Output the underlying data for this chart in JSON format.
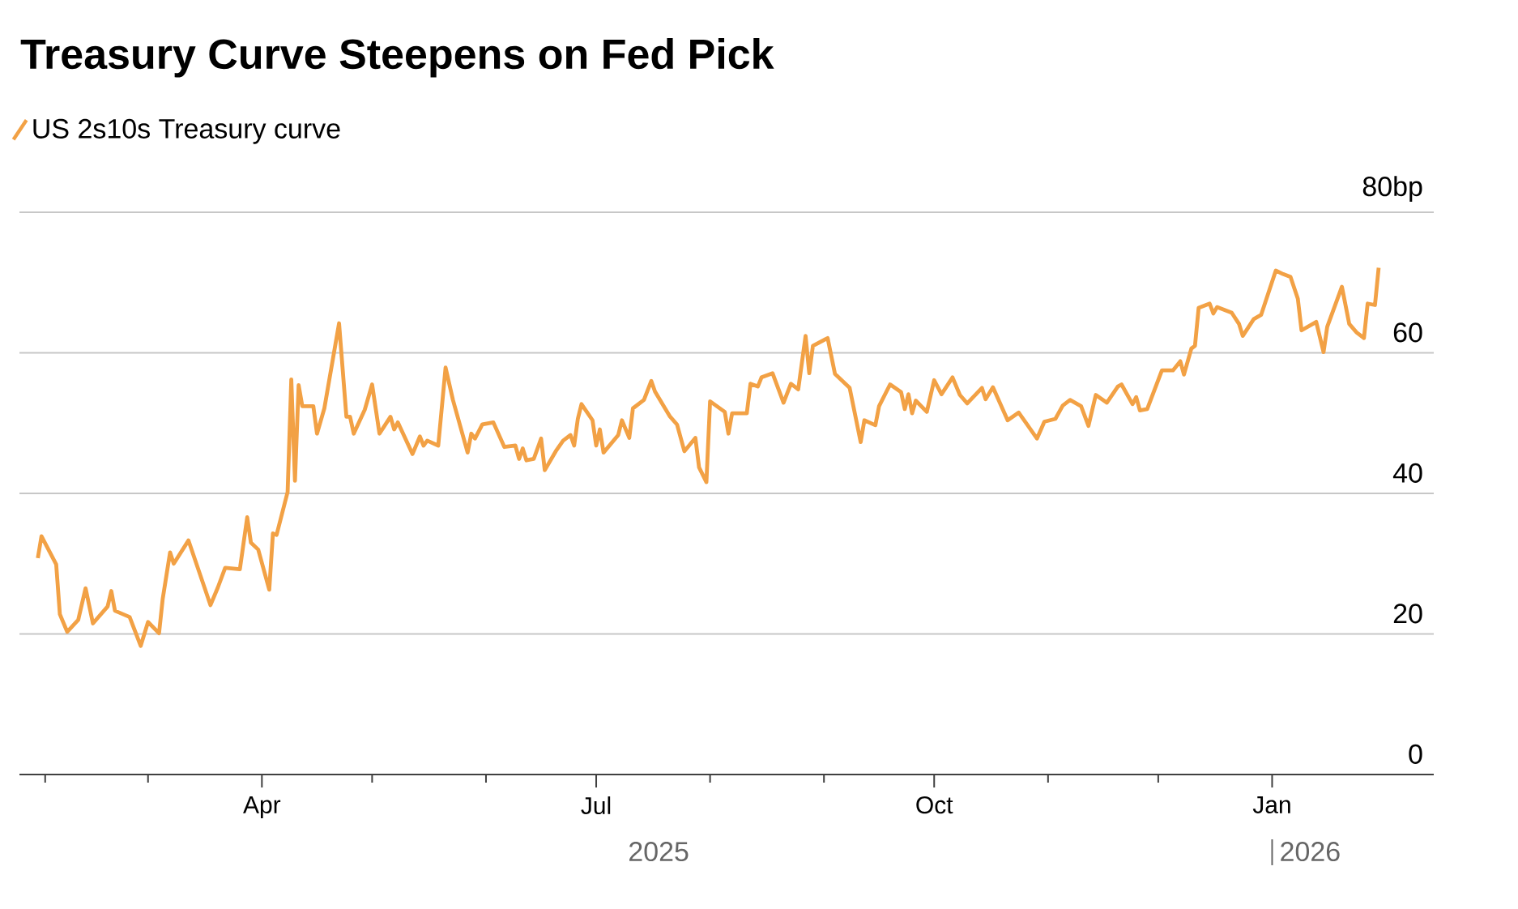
{
  "chart_data": {
    "type": "line",
    "title": "Treasury Curve Steepens on Fed Pick",
    "legend": "top left",
    "grid": "y",
    "line_style": "solid",
    "xlim": [
      "2025-01-25",
      "2026-02-14"
    ],
    "xticks": [
      {
        "value": "2025-02-01",
        "label": null
      },
      {
        "value": "2025-03-01",
        "label": null
      },
      {
        "value": "2025-04-01",
        "label": "Apr"
      },
      {
        "value": "2025-05-01",
        "label": null
      },
      {
        "value": "2025-06-01",
        "label": null
      },
      {
        "value": "2025-07-01",
        "label": "Jul"
      },
      {
        "value": "2025-08-01",
        "label": null
      },
      {
        "value": "2025-09-01",
        "label": null
      },
      {
        "value": "2025-10-01",
        "label": "Oct"
      },
      {
        "value": "2025-11-01",
        "label": null
      },
      {
        "value": "2025-12-01",
        "label": null
      },
      {
        "value": "2026-01-01",
        "label": "Jan"
      }
    ],
    "ylim": [
      0,
      80
    ],
    "yticks": [
      0,
      20,
      40,
      60,
      {
        "value": 80,
        "label": "80bp"
      }
    ],
    "annotations": [
      "2025",
      "2026"
    ],
    "series": [
      {
        "name": "US 2s10s Treasury curve",
        "color": "#f2a145",
        "x": [
          "2025-01-30",
          "2025-01-31",
          "2025-02-04",
          "2025-02-05",
          "2025-02-07",
          "2025-02-10",
          "2025-02-12",
          "2025-02-14",
          "2025-02-18",
          "2025-02-19",
          "2025-02-20",
          "2025-02-24",
          "2025-02-27",
          "2025-03-01",
          "2025-03-04",
          "2025-03-05",
          "2025-03-07",
          "2025-03-08",
          "2025-03-12",
          "2025-03-18",
          "2025-03-20",
          "2025-03-22",
          "2025-03-26",
          "2025-03-28",
          "2025-03-29",
          "2025-03-31",
          "2025-04-03",
          "2025-04-04",
          "2025-04-05",
          "2025-04-08",
          "2025-04-09",
          "2025-04-10",
          "2025-04-11",
          "2025-04-12",
          "2025-04-15",
          "2025-04-16",
          "2025-04-18",
          "2025-04-22",
          "2025-04-24",
          "2025-04-25",
          "2025-04-26",
          "2025-04-29",
          "2025-05-01",
          "2025-05-03",
          "2025-05-06",
          "2025-05-07",
          "2025-05-08",
          "2025-05-12",
          "2025-05-14",
          "2025-05-15",
          "2025-05-16",
          "2025-05-19",
          "2025-05-21",
          "2025-05-23",
          "2025-05-27",
          "2025-05-28",
          "2025-05-29",
          "2025-05-31",
          "2025-06-03",
          "2025-06-06",
          "2025-06-09",
          "2025-06-10",
          "2025-06-11",
          "2025-06-12",
          "2025-06-14",
          "2025-06-16",
          "2025-06-17",
          "2025-06-20",
          "2025-06-22",
          "2025-06-24",
          "2025-06-25",
          "2025-06-26",
          "2025-06-27",
          "2025-06-30",
          "2025-07-01",
          "2025-07-02",
          "2025-07-03",
          "2025-07-07",
          "2025-07-08",
          "2025-07-10",
          "2025-07-11",
          "2025-07-14",
          "2025-07-16",
          "2025-07-17",
          "2025-07-21",
          "2025-07-23",
          "2025-07-25",
          "2025-07-28",
          "2025-07-29",
          "2025-07-31",
          "2025-08-01",
          "2025-08-05",
          "2025-08-06",
          "2025-08-07",
          "2025-08-11",
          "2025-08-12",
          "2025-08-14",
          "2025-08-15",
          "2025-08-18",
          "2025-08-21",
          "2025-08-23",
          "2025-08-25",
          "2025-08-27",
          "2025-08-28",
          "2025-08-29",
          "2025-09-02",
          "2025-09-04",
          "2025-09-08",
          "2025-09-11",
          "2025-09-12",
          "2025-09-15",
          "2025-09-16",
          "2025-09-19",
          "2025-09-22",
          "2025-09-23",
          "2025-09-24",
          "2025-09-25",
          "2025-09-26",
          "2025-09-29",
          "2025-10-01",
          "2025-10-03",
          "2025-10-06",
          "2025-10-08",
          "2025-10-10",
          "2025-10-14",
          "2025-10-15",
          "2025-10-17",
          "2025-10-21",
          "2025-10-24",
          "2025-10-29",
          "2025-10-31",
          "2025-11-03",
          "2025-11-05",
          "2025-11-07",
          "2025-11-10",
          "2025-11-12",
          "2025-11-14",
          "2025-11-17",
          "2025-11-20",
          "2025-11-21",
          "2025-11-24",
          "2025-11-25",
          "2025-11-26",
          "2025-11-28",
          "2025-12-02",
          "2025-12-05",
          "2025-12-07",
          "2025-12-08",
          "2025-12-10",
          "2025-12-11",
          "2025-12-12",
          "2025-12-15",
          "2025-12-16",
          "2025-12-17",
          "2025-12-21",
          "2025-12-23",
          "2025-12-24",
          "2025-12-27",
          "2025-12-29",
          "2026-01-02",
          "2026-01-04",
          "2026-01-06",
          "2026-01-08",
          "2026-01-09",
          "2026-01-13",
          "2026-01-15",
          "2026-01-16",
          "2026-01-20",
          "2026-01-22",
          "2026-01-24",
          "2026-01-26",
          "2026-01-27",
          "2026-01-29",
          "2026-01-30"
        ],
        "values": [
          30.8,
          33.9,
          29.9,
          22.8,
          20.3,
          22.0,
          26.5,
          21.5,
          23.9,
          26.1,
          23.3,
          22.4,
          18.3,
          21.7,
          20.1,
          25.0,
          31.6,
          30.0,
          33.3,
          24.1,
          26.6,
          29.4,
          29.2,
          36.6,
          33.0,
          32.0,
          26.3,
          34.3,
          34.1,
          40.2,
          56.2,
          41.8,
          55.4,
          52.4,
          52.4,
          48.5,
          52.1,
          64.2,
          50.9,
          50.9,
          48.5,
          51.9,
          55.5,
          48.5,
          50.9,
          49.1,
          50.1,
          45.6,
          48.1,
          46.8,
          47.5,
          46.8,
          57.9,
          53.3,
          45.8,
          48.5,
          47.8,
          49.8,
          50.1,
          46.6,
          46.8,
          44.9,
          46.4,
          44.7,
          44.9,
          47.8,
          43.3,
          46.0,
          47.5,
          48.3,
          46.8,
          50.6,
          52.7,
          50.4,
          46.8,
          49.1,
          45.8,
          48.3,
          50.4,
          47.9,
          52.1,
          53.3,
          56.0,
          54.5,
          51.0,
          49.8,
          46.0,
          47.9,
          43.7,
          41.6,
          53.1,
          51.6,
          48.5,
          51.4,
          51.4,
          55.6,
          55.2,
          56.5,
          57.1,
          52.9,
          55.6,
          54.8,
          62.4,
          57.1,
          61.0,
          62.1,
          57.0,
          55.0,
          47.3,
          50.4,
          49.7,
          52.4,
          55.5,
          54.4,
          52.0,
          54.1,
          51.4,
          53.2,
          51.6,
          56.1,
          54.1,
          56.5,
          54.0,
          52.8,
          55.0,
          53.4,
          55.1,
          50.4,
          51.5,
          47.8,
          50.2,
          50.6,
          52.5,
          53.3,
          52.4,
          49.6,
          54.0,
          52.9,
          55.2,
          55.5,
          52.7,
          53.7,
          51.8,
          52.0,
          57.5,
          57.5,
          58.8,
          56.9,
          60.6,
          61.0,
          66.4,
          67.0,
          65.6,
          66.5,
          65.7,
          64.1,
          62.4,
          64.8,
          65.4,
          71.7,
          71.2,
          70.8,
          67.7,
          63.2,
          64.4,
          60.1,
          63.7,
          69.4,
          64.1,
          62.9,
          62.1,
          67.0,
          66.8,
          72.1
        ]
      }
    ]
  }
}
